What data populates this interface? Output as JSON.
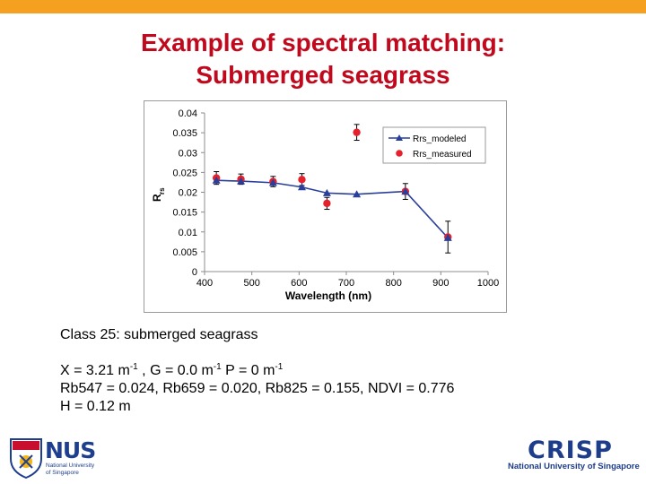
{
  "slide": {
    "title_line1": "Example of spectral matching:",
    "title_line2": "Submerged seagrass",
    "accent_color": "#f5a01f",
    "title_color": "#c0091d"
  },
  "info": {
    "class_line": "Class 25: submerged seagrass",
    "x_text": "X = 3.21 m",
    "x_exp": "-1",
    "g_text": " ,  G = 0.0 m",
    "g_exp": "-1",
    "p_text": " P = 0 m",
    "p_exp": "-1",
    "rb_line": "Rb547 = 0.024, Rb659 = 0.020, Rb825 = 0.155, NDVI = 0.776",
    "h_line": "H = 0.12 m"
  },
  "logos": {
    "nus_name": "NUS",
    "nus_sub1": "National University",
    "nus_sub2": "of Singapore",
    "crisp_name": "CRISP",
    "crisp_sub": "National University of Singapore"
  },
  "chart_data": {
    "type": "line",
    "xlabel": "Wavelength (nm)",
    "ylabel": "R",
    "ylabel_sub": "rs",
    "xlim": [
      400,
      1000
    ],
    "ylim": [
      0,
      0.04
    ],
    "x_ticks": [
      "400",
      "500",
      "600",
      "700",
      "800",
      "900",
      "1000"
    ],
    "y_ticks": [
      "0",
      "0.005",
      "0.01",
      "0.015",
      "0.02",
      "0.025",
      "0.03",
      "0.035",
      "0.04"
    ],
    "legend_position": "top-right",
    "series": [
      {
        "name": "Rrs_modeled",
        "color": "#2a3f9b",
        "marker": "triangle",
        "x": [
          425,
          477,
          545,
          606,
          659,
          722,
          825,
          915
        ],
        "y": [
          0.023,
          0.0228,
          0.0224,
          0.0213,
          0.0198,
          0.0195,
          0.0202,
          0.0085
        ]
      },
      {
        "name": "Rrs_measured",
        "color": "#e5222b",
        "marker": "circle",
        "x": [
          425,
          477,
          545,
          606,
          659,
          722,
          825,
          915
        ],
        "y": [
          0.0236,
          0.0233,
          0.0227,
          0.0232,
          0.0172,
          0.0351,
          0.0202,
          0.0087
        ],
        "err": [
          0.0016,
          0.0013,
          0.0013,
          0.0015,
          0.0015,
          0.002,
          0.002,
          0.004
        ]
      }
    ]
  }
}
